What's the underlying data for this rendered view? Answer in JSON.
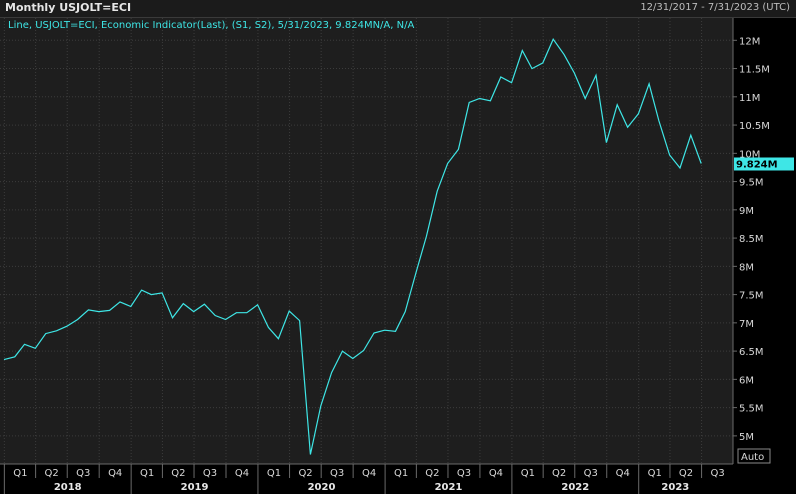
{
  "window": {
    "title": "Monthly USJOLT=ECI",
    "date_range": "12/31/2017 - 7/31/2023 (UTC)"
  },
  "colors": {
    "background": "#000000",
    "plot_background": "#1e1e1e",
    "line": "#3ee6e6",
    "last_value_badge": "#3ee6e6"
  },
  "auto_button": "Auto",
  "chart_data": {
    "type": "line",
    "legend": "Line, USJOLT=ECI, Economic Indicator(Last), (S1, S2), 5/31/2023, 9.824MN/A, N/A",
    "legend_placement": "top-left",
    "last_value_label": "9.824M",
    "grid": true,
    "x_range": [
      "2017-12-31",
      "2023-07-31"
    ],
    "ylim": [
      4.75,
      12.2
    ],
    "y_ticks": [
      {
        "value": 5.0,
        "label": "5M"
      },
      {
        "value": 5.5,
        "label": "5.5M"
      },
      {
        "value": 6.0,
        "label": "6M"
      },
      {
        "value": 6.5,
        "label": "6.5M"
      },
      {
        "value": 7.0,
        "label": "7M"
      },
      {
        "value": 7.5,
        "label": "7.5M"
      },
      {
        "value": 8.0,
        "label": "8M"
      },
      {
        "value": 8.5,
        "label": "8.5M"
      },
      {
        "value": 9.0,
        "label": "9M"
      },
      {
        "value": 9.5,
        "label": "9.5M"
      },
      {
        "value": 10.0,
        "label": "10M"
      },
      {
        "value": 10.5,
        "label": "10.5M"
      },
      {
        "value": 11.0,
        "label": "11M"
      },
      {
        "value": 11.5,
        "label": "11.5M"
      },
      {
        "value": 12.0,
        "label": "12M"
      }
    ],
    "quarter_ticks": [
      {
        "date": "2018-01-01",
        "label": "Q1"
      },
      {
        "date": "2018-04-01",
        "label": "Q2"
      },
      {
        "date": "2018-07-01",
        "label": "Q3"
      },
      {
        "date": "2018-10-01",
        "label": "Q4"
      },
      {
        "date": "2019-01-01",
        "label": "Q1"
      },
      {
        "date": "2019-04-01",
        "label": "Q2"
      },
      {
        "date": "2019-07-01",
        "label": "Q3"
      },
      {
        "date": "2019-10-01",
        "label": "Q4"
      },
      {
        "date": "2020-01-01",
        "label": "Q1"
      },
      {
        "date": "2020-04-01",
        "label": "Q2"
      },
      {
        "date": "2020-07-01",
        "label": "Q3"
      },
      {
        "date": "2020-10-01",
        "label": "Q4"
      },
      {
        "date": "2021-01-01",
        "label": "Q1"
      },
      {
        "date": "2021-04-01",
        "label": "Q2"
      },
      {
        "date": "2021-07-01",
        "label": "Q3"
      },
      {
        "date": "2021-10-01",
        "label": "Q4"
      },
      {
        "date": "2022-01-01",
        "label": "Q1"
      },
      {
        "date": "2022-04-01",
        "label": "Q2"
      },
      {
        "date": "2022-07-01",
        "label": "Q3"
      },
      {
        "date": "2022-10-01",
        "label": "Q4"
      },
      {
        "date": "2023-01-01",
        "label": "Q1"
      },
      {
        "date": "2023-04-01",
        "label": "Q2"
      },
      {
        "date": "2023-07-01",
        "label": "Q3"
      }
    ],
    "year_labels": [
      {
        "label": "2018",
        "start": "2018-01-01",
        "end": "2019-01-01"
      },
      {
        "label": "2019",
        "start": "2019-01-01",
        "end": "2020-01-01"
      },
      {
        "label": "2020",
        "start": "2020-01-01",
        "end": "2021-01-01"
      },
      {
        "label": "2021",
        "start": "2021-01-01",
        "end": "2022-01-01"
      },
      {
        "label": "2022",
        "start": "2022-01-01",
        "end": "2023-01-01"
      },
      {
        "label": "2023",
        "start": "2023-01-01",
        "end": "2023-07-31"
      }
    ],
    "series": [
      {
        "points": [
          {
            "x": "2017-12-31",
            "y": 6.35
          },
          {
            "x": "2018-01-31",
            "y": 6.4
          },
          {
            "x": "2018-02-28",
            "y": 6.62
          },
          {
            "x": "2018-03-31",
            "y": 6.55
          },
          {
            "x": "2018-04-30",
            "y": 6.81
          },
          {
            "x": "2018-05-31",
            "y": 6.86
          },
          {
            "x": "2018-06-30",
            "y": 6.94
          },
          {
            "x": "2018-07-31",
            "y": 7.06
          },
          {
            "x": "2018-08-31",
            "y": 7.23
          },
          {
            "x": "2018-09-30",
            "y": 7.2
          },
          {
            "x": "2018-10-31",
            "y": 7.22
          },
          {
            "x": "2018-11-30",
            "y": 7.37
          },
          {
            "x": "2018-12-31",
            "y": 7.29
          },
          {
            "x": "2019-01-31",
            "y": 7.58
          },
          {
            "x": "2019-02-28",
            "y": 7.5
          },
          {
            "x": "2019-03-31",
            "y": 7.53
          },
          {
            "x": "2019-04-30",
            "y": 7.09
          },
          {
            "x": "2019-05-31",
            "y": 7.34
          },
          {
            "x": "2019-06-30",
            "y": 7.2
          },
          {
            "x": "2019-07-31",
            "y": 7.33
          },
          {
            "x": "2019-08-31",
            "y": 7.13
          },
          {
            "x": "2019-09-30",
            "y": 7.06
          },
          {
            "x": "2019-10-31",
            "y": 7.18
          },
          {
            "x": "2019-11-30",
            "y": 7.18
          },
          {
            "x": "2019-12-31",
            "y": 7.32
          },
          {
            "x": "2020-01-31",
            "y": 6.92
          },
          {
            "x": "2020-02-29",
            "y": 6.72
          },
          {
            "x": "2020-03-31",
            "y": 7.21
          },
          {
            "x": "2020-04-30",
            "y": 7.04
          },
          {
            "x": "2020-05-31",
            "y": 4.67
          },
          {
            "x": "2020-06-30",
            "y": 5.53
          },
          {
            "x": "2020-07-31",
            "y": 6.12
          },
          {
            "x": "2020-08-31",
            "y": 6.5
          },
          {
            "x": "2020-09-30",
            "y": 6.37
          },
          {
            "x": "2020-10-31",
            "y": 6.51
          },
          {
            "x": "2020-11-30",
            "y": 6.82
          },
          {
            "x": "2020-12-31",
            "y": 6.87
          },
          {
            "x": "2021-01-31",
            "y": 6.85
          },
          {
            "x": "2021-02-28",
            "y": 7.2
          },
          {
            "x": "2021-03-31",
            "y": 7.89
          },
          {
            "x": "2021-04-30",
            "y": 8.53
          },
          {
            "x": "2021-05-31",
            "y": 9.33
          },
          {
            "x": "2021-06-30",
            "y": 9.82
          },
          {
            "x": "2021-07-31",
            "y": 10.07
          },
          {
            "x": "2021-08-31",
            "y": 10.9
          },
          {
            "x": "2021-09-30",
            "y": 10.97
          },
          {
            "x": "2021-10-31",
            "y": 10.93
          },
          {
            "x": "2021-11-30",
            "y": 11.35
          },
          {
            "x": "2021-12-31",
            "y": 11.25
          },
          {
            "x": "2022-01-31",
            "y": 11.82
          },
          {
            "x": "2022-02-28",
            "y": 11.5
          },
          {
            "x": "2022-03-31",
            "y": 11.6
          },
          {
            "x": "2022-04-30",
            "y": 12.02
          },
          {
            "x": "2022-05-31",
            "y": 11.75
          },
          {
            "x": "2022-06-30",
            "y": 11.42
          },
          {
            "x": "2022-07-31",
            "y": 10.97
          },
          {
            "x": "2022-08-31",
            "y": 11.38
          },
          {
            "x": "2022-09-30",
            "y": 10.19
          },
          {
            "x": "2022-10-31",
            "y": 10.86
          },
          {
            "x": "2022-11-30",
            "y": 10.46
          },
          {
            "x": "2022-12-31",
            "y": 10.7
          },
          {
            "x": "2023-01-31",
            "y": 11.23
          },
          {
            "x": "2023-02-28",
            "y": 10.58
          },
          {
            "x": "2023-03-31",
            "y": 9.97
          },
          {
            "x": "2023-04-30",
            "y": 9.74
          },
          {
            "x": "2023-05-31",
            "y": 10.32
          },
          {
            "x": "2023-06-30",
            "y": 9.82
          }
        ]
      }
    ]
  }
}
